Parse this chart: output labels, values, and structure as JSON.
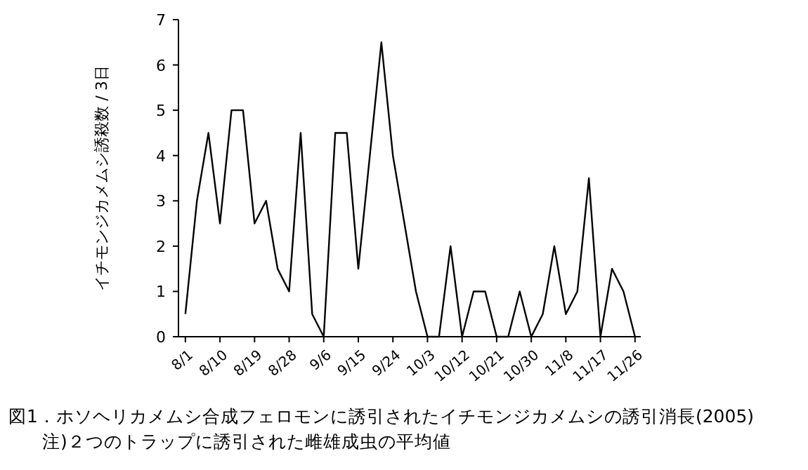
{
  "chart_data": {
    "type": "line",
    "ylabel": "イチモンジカメムシ誘殺数 / 3日",
    "categories": [
      "8/1",
      null,
      null,
      "8/10",
      null,
      null,
      "8/19",
      null,
      null,
      "8/28",
      null,
      null,
      "9/6",
      null,
      null,
      "9/15",
      null,
      null,
      "9/24",
      null,
      null,
      "10/3",
      null,
      null,
      "10/12",
      null,
      null,
      "10/21",
      null,
      null,
      "10/30",
      null,
      null,
      "11/8",
      null,
      null,
      "11/17",
      null,
      null,
      "11/26"
    ],
    "series": [
      {
        "color": "#000000",
        "values": [
          0.5,
          3,
          4.5,
          2.5,
          5,
          5,
          2.5,
          3,
          1.5,
          1,
          4.5,
          0.5,
          0,
          4.5,
          4.5,
          1.5,
          4,
          6.5,
          4,
          2.5,
          1,
          0,
          0,
          2,
          0,
          1,
          1,
          0,
          0,
          1,
          0,
          0.5,
          2,
          0.5,
          1,
          3.5,
          0,
          1.5,
          1,
          0
        ]
      }
    ],
    "ylim": [
      0,
      7
    ],
    "yticks": [
      0,
      1,
      2,
      3,
      4,
      5,
      6,
      7
    ],
    "grid": false,
    "marker": "none",
    "line_style": "solid",
    "annotations": [
      "図1．ホソヘリカメムシ合成フェロモンに誘引されたイチモンジカメムシの誘引消長(2005)",
      "注)２つのトラップに誘引された雌雄成虫の平均値"
    ]
  }
}
